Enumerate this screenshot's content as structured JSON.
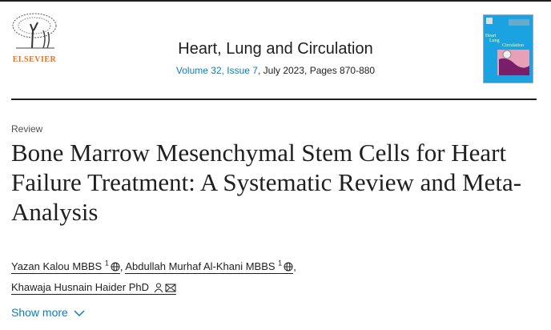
{
  "publisher": {
    "logo_text": "ELSEVIER"
  },
  "journal": {
    "title": "Heart, Lung and Circulation",
    "volume_issue": "Volume 32, Issue 7",
    "details": ", July 2023, Pages 870-880",
    "cover_text": [
      "Heart",
      "Lung",
      "Circulation"
    ]
  },
  "article": {
    "type": "Review",
    "title": "Bone Marrow Mesenchymal Stem Cells for Heart Failure Treatment: A Systematic Review and Meta-Analysis"
  },
  "authors": [
    {
      "name": "Yazan Kalou MBBS",
      "sup": "1",
      "icon": "globe-icon"
    },
    {
      "name": "Abdullah Murhaf Al-Khani MBBS",
      "sup": "1",
      "icon": "globe-icon"
    },
    {
      "name": "Khawaja Husnain Haider PhD",
      "icons": [
        "person-icon",
        "email-icon"
      ]
    }
  ],
  "separator": ",",
  "show_more": "Show more",
  "colors": {
    "link": "#0c7dbb",
    "elsevier_orange": "#e9711c",
    "cover_blue": "#1aa3e0"
  }
}
